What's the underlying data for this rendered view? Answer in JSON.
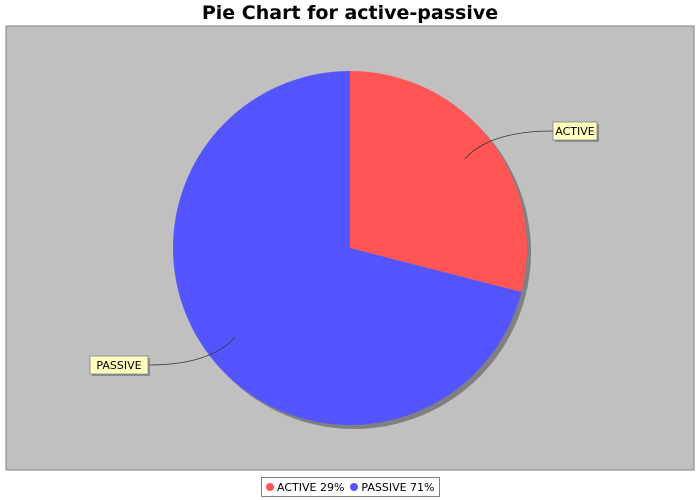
{
  "chart_data": {
    "type": "pie",
    "title": "Pie Chart for active-passive",
    "slices": [
      {
        "label": "ACTIVE",
        "value": 29,
        "color": "#ff5555",
        "legend_text": "ACTIVE 29%"
      },
      {
        "label": "PASSIVE",
        "value": 71,
        "color": "#5555ff",
        "legend_text": "PASSIVE 71%"
      }
    ],
    "plot_background": "#c0c0c0",
    "legend_position": "bottom"
  }
}
